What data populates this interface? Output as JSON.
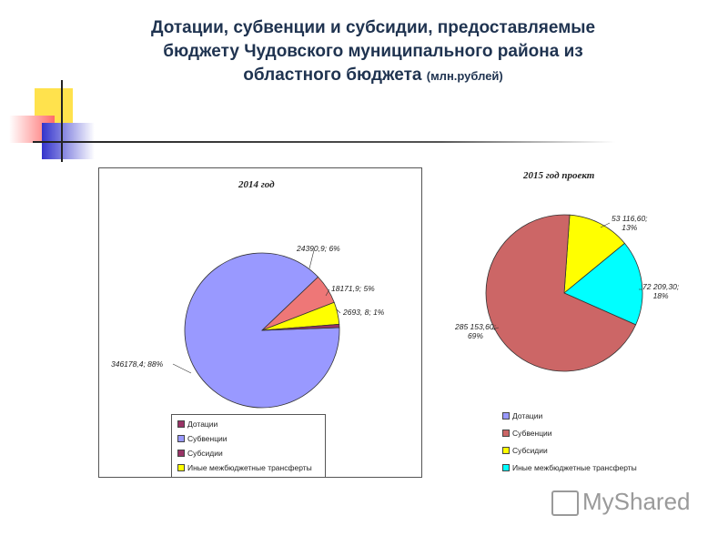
{
  "header": {
    "title_line1": "Дотации, субвенции и субсидии, предоставляемые",
    "title_line2": "бюджету Чудовского муниципального района из",
    "title_line3": "областного бюджета",
    "title_unit": "(млн.рублей)"
  },
  "colors": {
    "dotacii": "#993366",
    "subvencii": "#9999ff",
    "subsidii": "#ffff00",
    "inye": "#00ffff",
    "pie2_subvencii": "#cc6666"
  },
  "chart_data": [
    {
      "type": "pie",
      "title": "2014 год",
      "slices": [
        {
          "name": "Дотации",
          "value": 2693.8,
          "percent": 1,
          "label": "2693, 8; 1%"
        },
        {
          "name": "Субвенции",
          "value": 346178.4,
          "percent": 88,
          "label": "346178,4; 88%"
        },
        {
          "name": "Субсидии",
          "value": 24390.9,
          "percent": 6,
          "label": "24390,9; 6%"
        },
        {
          "name": "Иные межбюджетные трансферты",
          "value": 18171.9,
          "percent": 5,
          "label": "18171,9; 5%"
        }
      ],
      "legend": [
        "Дотации",
        "Субвенции",
        "Субсидии",
        "Иные межбюджетные трансферты"
      ],
      "legend_position": "bottom"
    },
    {
      "type": "pie",
      "title": "2015 год проект",
      "slices": [
        {
          "name": "Дотации",
          "value": 0,
          "percent": 0,
          "label": ""
        },
        {
          "name": "Субвенции",
          "value": 285153.6,
          "percent": 69,
          "label_l1": "285 153,60;",
          "label_l2": "69%"
        },
        {
          "name": "Субсидии",
          "value": 53116.6,
          "percent": 13,
          "label_l1": "53 116,60;",
          "label_l2": "13%"
        },
        {
          "name": "Иные межбюджетные трансферты",
          "value": 72209.3,
          "percent": 18,
          "label_l1": "72 209,30;",
          "label_l2": "18%"
        }
      ],
      "legend": [
        "Дотации",
        "Субвенции",
        "Субсидии",
        "Иные межбюджетные трансферты"
      ],
      "legend_position": "bottom"
    }
  ],
  "watermark": "MyShared"
}
